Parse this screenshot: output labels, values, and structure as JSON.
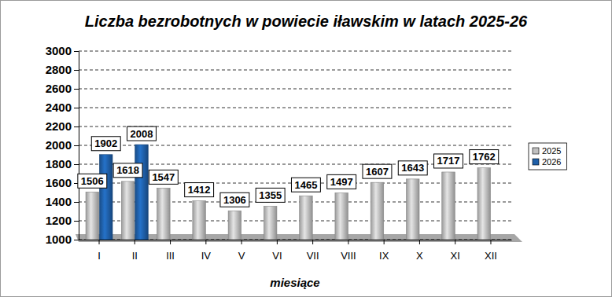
{
  "chart_data": {
    "type": "bar",
    "title": "Liczba bezrobotnych w powiecie iławskim w latach 2025-26",
    "x_label": "miesiące",
    "categories": [
      "I",
      "II",
      "III",
      "IV",
      "V",
      "VI",
      "VII",
      "VIII",
      "IX",
      "X",
      "XI",
      "XII"
    ],
    "series": [
      {
        "name": "2025",
        "color": "#c0c0c0",
        "values": [
          1506,
          1618,
          1547,
          1412,
          1306,
          1355,
          1465,
          1497,
          1607,
          1643,
          1717,
          1762
        ]
      },
      {
        "name": "2026",
        "color": "#1f5fa8",
        "values": [
          1902,
          2008,
          null,
          null,
          null,
          null,
          null,
          null,
          null,
          null,
          null,
          null
        ]
      }
    ],
    "ylim": [
      1000,
      3000
    ],
    "yticks": [
      1000,
      1200,
      1400,
      1600,
      1800,
      2000,
      2200,
      2400,
      2600,
      2800,
      3000
    ],
    "grid": true,
    "legend": "right",
    "data_labels": true
  }
}
